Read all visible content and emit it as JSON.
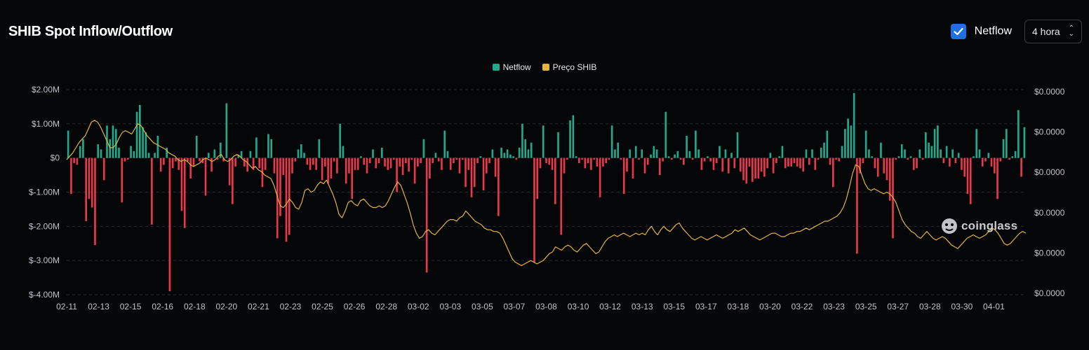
{
  "header": {
    "title": "SHIB Spot Inflow/Outflow",
    "checkbox_label": "Netflow",
    "interval": "4 hora"
  },
  "legend": {
    "netflow": "Netflow",
    "price": "Preço SHIB"
  },
  "watermark": "coinglass",
  "colors": {
    "positive": "#22a98c",
    "negative": "#e8394a",
    "price": "#e4b53c",
    "grid": "#2a2d33",
    "checkbox": "#1e6fe0"
  },
  "chart_data": {
    "type": "bar",
    "grid": true,
    "legend_position": "top-center",
    "left_axis": {
      "ticks": [
        "$2.00M",
        "$1.00M",
        "$0",
        "$-1.00M",
        "$-2.00M",
        "$-3.00M",
        "$-4.00M"
      ],
      "tick_values": [
        2.0,
        1.0,
        0,
        -1.0,
        -2.0,
        -3.0,
        -4.0
      ],
      "ylim": [
        -4.0,
        2.0
      ],
      "unit": "M USD"
    },
    "right_axis": {
      "ticks": [
        "$0.0000",
        "$0.0000",
        "$0.0000",
        "$0.0000",
        "$0.0000",
        "$0.0000"
      ]
    },
    "x_ticks": [
      "02-11",
      "02-13",
      "02-15",
      "02-16",
      "02-18",
      "02-20",
      "02-21",
      "02-23",
      "02-25",
      "02-26",
      "02-28",
      "03-02",
      "03-03",
      "03-05",
      "03-07",
      "03-08",
      "03-10",
      "03-12",
      "03-13",
      "03-15",
      "03-17",
      "03-18",
      "03-20",
      "03-22",
      "03-23",
      "03-25",
      "03-27",
      "03-28",
      "03-30",
      "04-01"
    ],
    "series": [
      {
        "name": "Netflow",
        "type": "bar",
        "values": [
          0.8,
          -1.05,
          -0.15,
          -0.2,
          0.35,
          0.55,
          -1.85,
          -1.2,
          -1.45,
          -2.55,
          0.4,
          0.25,
          -0.65,
          0.95,
          0.55,
          0.95,
          0.85,
          0.3,
          -1.3,
          -0.1,
          -0.05,
          0.35,
          0.2,
          1.35,
          1.55,
          0.9,
          0.75,
          0.15,
          -1.95,
          0.15,
          0.65,
          -0.4,
          -0.2,
          0.3,
          -3.9,
          -0.3,
          -0.1,
          -0.35,
          -1.55,
          -2.05,
          -0.1,
          -0.6,
          -0.25,
          0.65,
          -0.1,
          -0.15,
          -1.1,
          0.15,
          -0.4,
          0.25,
          -0.05,
          0.45,
          -0.1,
          1.6,
          -0.8,
          -1.35,
          -0.25,
          0.1,
          0.2,
          -0.25,
          -0.4,
          0.2,
          -0.35,
          0.6,
          -0.3,
          -0.85,
          -0.35,
          0.7,
          0.55,
          -0.45,
          -2.35,
          -1.7,
          -0.5,
          -2.45,
          -2.25,
          -0.45,
          -0.1,
          0.25,
          0.4,
          0.15,
          -0.2,
          -0.35,
          -0.2,
          -0.35,
          0.55,
          -0.65,
          -0.25,
          -0.75,
          -0.6,
          -0.1,
          -0.45,
          1.0,
          0.35,
          -0.75,
          -0.45,
          -1.2,
          -0.35,
          -0.35,
          0.05,
          -0.2,
          -0.45,
          -0.15,
          0.25,
          -0.3,
          -0.15,
          0.3,
          -0.25,
          -0.35,
          -0.3,
          -0.05,
          -1.0,
          -0.25,
          -0.5,
          -0.15,
          -0.4,
          -0.05,
          -0.75,
          -0.25,
          -0.15,
          0.55,
          -3.35,
          -0.6,
          -0.15,
          0.15,
          -0.1,
          -0.35,
          0.8,
          0.2,
          -0.35,
          -0.15,
          -0.05,
          -0.45,
          -0.05,
          -0.85,
          -0.35,
          -1.15,
          -0.85,
          -0.15,
          0.05,
          -0.95,
          -0.45,
          -0.15,
          0.25,
          -0.55,
          -1.7,
          0.3,
          0.15,
          0.25,
          0.1,
          0.05,
          -0.05,
          0.3,
          1.0,
          0.55,
          0.25,
          0.45,
          -3.05,
          -1.2,
          -0.3,
          0.95,
          -0.15,
          -0.2,
          -0.35,
          -1.35,
          0.75,
          -2.25,
          -0.45,
          -0.05,
          1.1,
          1.25,
          0.05,
          -0.15,
          -0.05,
          -0.3,
          -0.15,
          -0.35,
          -0.05,
          -0.25,
          -1.15,
          -0.25,
          -0.15,
          -0.05,
          0.95,
          0.25,
          0.45,
          -0.05,
          -1.05,
          -0.4,
          0.25,
          -0.6,
          0.35,
          -0.05,
          0.25,
          -0.45,
          -0.2,
          0.1,
          0.35,
          0.25,
          -0.5,
          -0.1,
          1.35,
          0.05,
          -0.05,
          0.1,
          0.2,
          -0.05,
          -0.2,
          0.65,
          0.2,
          -0.05,
          0.8,
          0.25,
          -0.35,
          -0.1,
          0.05,
          -0.1,
          -0.35,
          -0.15,
          0.35,
          -0.4,
          0.25,
          -0.45,
          0.15,
          -0.3,
          0.75,
          -0.4,
          -0.65,
          -0.75,
          -0.25,
          -0.7,
          -0.6,
          -0.6,
          -0.4,
          -0.55,
          -0.3,
          0.15,
          -0.45,
          -0.15,
          0.05,
          0.35,
          -0.3,
          -0.25,
          -0.25,
          -0.15,
          -0.25,
          -0.3,
          -0.4,
          0.25,
          -0.2,
          0.25,
          -0.35,
          -0.05,
          0.3,
          0.45,
          0.8,
          -0.2,
          -0.85,
          -0.05,
          -0.1,
          0.35,
          0.85,
          1.15,
          0.95,
          1.9,
          -2.8,
          -0.45,
          -0.15,
          0.8,
          0.25,
          0.05,
          -0.3,
          -0.55,
          0.45,
          -0.45,
          -0.65,
          -1.25,
          -2.35,
          -0.05,
          0.05,
          0.4,
          0.25,
          -0.05,
          0.05,
          -0.35,
          -0.3,
          0.25,
          -0.05,
          0.75,
          0.45,
          0.35,
          0.85,
          0.95,
          0.25,
          -0.15,
          0.35,
          -0.25,
          0.25,
          -0.15,
          0.15,
          -0.35,
          -0.55,
          -1.05,
          -1.35,
          0.05,
          0.85,
          0.25,
          -0.25,
          -0.1,
          0.15,
          -0.25,
          -0.45,
          -1.2,
          -0.1,
          0.55,
          0.85,
          -0.05,
          0.05,
          0.2,
          1.4,
          -0.55,
          0.9
        ]
      },
      {
        "name": "Preço SHIB",
        "type": "line",
        "values": [
          -0.05,
          0.05,
          0.15,
          0.3,
          0.45,
          0.55,
          0.65,
          0.85,
          1.05,
          1.1,
          1.05,
          0.9,
          0.7,
          0.5,
          0.3,
          0.3,
          0.4,
          0.6,
          0.75,
          0.8,
          0.75,
          0.7,
          0.85,
          1.0,
          0.95,
          0.8,
          0.65,
          0.55,
          0.45,
          0.4,
          0.35,
          0.3,
          0.25,
          0.15,
          0.1,
          0.05,
          -0.05,
          -0.1,
          -0.05,
          -0.1,
          -0.2,
          -0.25,
          -0.2,
          -0.15,
          -0.05,
          0.0,
          -0.05,
          -0.1,
          -0.05,
          0.05,
          0.1,
          -0.05,
          -0.1,
          -0.05,
          0.05,
          0.1,
          0.05,
          -0.05,
          -0.1,
          -0.2,
          -0.3,
          -0.25,
          -0.35,
          -0.4,
          -0.5,
          -0.55,
          -0.6,
          -0.8,
          -1.1,
          -1.4,
          -1.45,
          -1.35,
          -1.2,
          -1.3,
          -1.45,
          -1.5,
          -1.3,
          -0.95,
          -0.9,
          -1.0,
          -0.95,
          -0.8,
          -0.7,
          -0.75,
          -0.65,
          -0.85,
          -1.05,
          -1.3,
          -1.65,
          -1.75,
          -1.55,
          -1.3,
          -1.25,
          -1.35,
          -1.4,
          -1.25,
          -1.2,
          -1.3,
          -1.4,
          -1.45,
          -1.45,
          -1.4,
          -1.45,
          -1.4,
          -1.25,
          -1.05,
          -0.85,
          -0.7,
          -0.8,
          -1.05,
          -1.3,
          -1.6,
          -1.95,
          -2.2,
          -2.35,
          -2.3,
          -2.15,
          -2.1,
          -2.2,
          -2.25,
          -2.15,
          -2.05,
          -1.95,
          -1.85,
          -1.8,
          -1.8,
          -1.85,
          -1.75,
          -1.7,
          -1.55,
          -1.65,
          -1.75,
          -1.85,
          -1.9,
          -1.95,
          -2.05,
          -2.1,
          -2.1,
          -2.15,
          -2.15,
          -2.2,
          -2.35,
          -2.55,
          -2.75,
          -2.95,
          -3.05,
          -3.1,
          -3.15,
          -3.1,
          -3.05,
          -3.0,
          -3.05,
          -3.1,
          -3.05,
          -3.0,
          -2.9,
          -2.8,
          -2.75,
          -2.6,
          -2.65,
          -2.7,
          -2.6,
          -2.55,
          -2.6,
          -2.7,
          -2.75,
          -2.65,
          -2.55,
          -2.5,
          -2.6,
          -2.7,
          -2.8,
          -2.75,
          -2.6,
          -2.45,
          -2.35,
          -2.3,
          -2.25,
          -2.3,
          -2.25,
          -2.2,
          -2.25,
          -2.3,
          -2.25,
          -2.2,
          -2.25,
          -2.2,
          -2.25,
          -2.1,
          -2.0,
          -2.15,
          -2.25,
          -2.1,
          -2.0,
          -2.1,
          -2.15,
          -2.05,
          -1.95,
          -1.9,
          -2.05,
          -2.15,
          -2.25,
          -2.35,
          -2.4,
          -2.35,
          -2.3,
          -2.35,
          -2.4,
          -2.35,
          -2.3,
          -2.25,
          -2.3,
          -2.35,
          -2.3,
          -2.25,
          -2.2,
          -2.1,
          -2.15,
          -2.1,
          -2.05,
          -2.15,
          -2.25,
          -2.3,
          -2.35,
          -2.4,
          -2.35,
          -2.3,
          -2.25,
          -2.2,
          -2.2,
          -2.25,
          -2.3,
          -2.3,
          -2.25,
          -2.2,
          -2.2,
          -2.15,
          -2.15,
          -2.1,
          -2.05,
          -2.1,
          -2.05,
          -2.0,
          -1.95,
          -1.9,
          -1.85,
          -1.85,
          -1.8,
          -1.75,
          -1.7,
          -1.6,
          -1.45,
          -1.2,
          -0.85,
          -0.45,
          -0.2,
          -0.25,
          -0.5,
          -0.75,
          -0.9,
          -0.95,
          -0.9,
          -0.95,
          -1.0,
          -1.05,
          -1.0,
          -1.05,
          -1.15,
          -1.3,
          -1.55,
          -1.8,
          -1.95,
          -2.05,
          -2.15,
          -2.2,
          -2.3,
          -2.35,
          -2.25,
          -2.15,
          -2.25,
          -2.35,
          -2.4,
          -2.35,
          -2.3,
          -2.35,
          -2.45,
          -2.55,
          -2.6,
          -2.65,
          -2.55,
          -2.45,
          -2.35,
          -2.3,
          -2.25,
          -2.3,
          -2.35,
          -2.3,
          -2.25,
          -2.15,
          -2.05,
          -2.1,
          -2.2,
          -2.35,
          -2.5,
          -2.55,
          -2.5,
          -2.4,
          -2.3,
          -2.2,
          -2.15,
          -2.2
        ]
      }
    ]
  }
}
